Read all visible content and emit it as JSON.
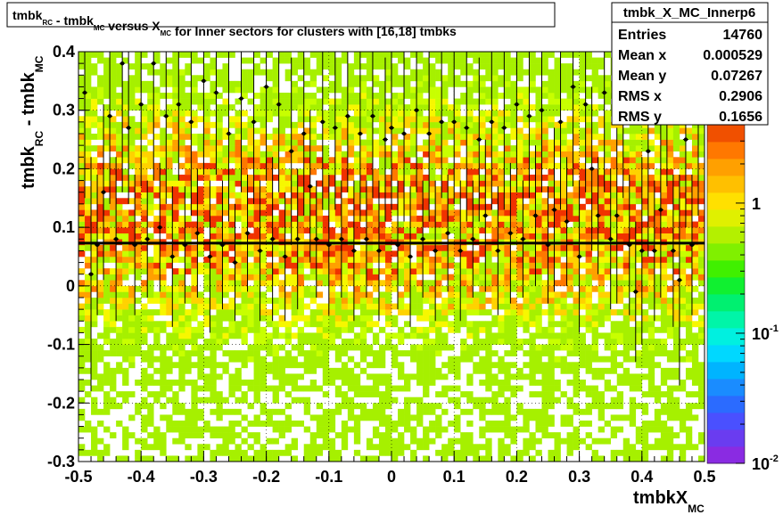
{
  "chart_data": {
    "type": "heatmap",
    "title": {
      "parts": [
        {
          "text": "tmbk",
          "sub": false
        },
        {
          "text": "RC",
          "sub": true
        },
        {
          "text": " - tmbk",
          "sub": false
        },
        {
          "text": "MC",
          "sub": true
        },
        {
          "text": " versus X",
          "sub": false
        },
        {
          "text": "MC",
          "sub": true
        },
        {
          "text": " for Inner sectors for clusters with [16,18] tmbks",
          "sub": false
        }
      ]
    },
    "xlabel": {
      "main": "tmbkX",
      "sub": "MC"
    },
    "ylabel": {
      "main1": "tmbk",
      "sub1": "RC",
      "main2": " - tmbk",
      "sub2": "MC"
    },
    "xlim": [
      -0.5,
      0.5
    ],
    "ylim": [
      -0.3,
      0.4
    ],
    "x_ticks": [
      {
        "v": -0.5,
        "label": "-0.5"
      },
      {
        "v": -0.4,
        "label": "-0.4"
      },
      {
        "v": -0.3,
        "label": "-0.3"
      },
      {
        "v": -0.2,
        "label": "-0.2"
      },
      {
        "v": -0.1,
        "label": "-0.1"
      },
      {
        "v": 0,
        "label": "0"
      },
      {
        "v": 0.1,
        "label": "0.1"
      },
      {
        "v": 0.2,
        "label": "0.2"
      },
      {
        "v": 0.3,
        "label": "0.3"
      },
      {
        "v": 0.4,
        "label": "0.4"
      },
      {
        "v": 0.5,
        "label": "0.5"
      }
    ],
    "y_ticks": [
      {
        "v": -0.3,
        "label": "-0.3"
      },
      {
        "v": -0.2,
        "label": "-0.2"
      },
      {
        "v": -0.1,
        "label": "-0.1"
      },
      {
        "v": 0,
        "label": "0"
      },
      {
        "v": 0.1,
        "label": "0.1"
      },
      {
        "v": 0.2,
        "label": "0.2"
      },
      {
        "v": 0.3,
        "label": "0.3"
      },
      {
        "v": 0.4,
        "label": "0.4"
      }
    ],
    "z_scale": "log",
    "z_range": [
      0.01,
      4
    ],
    "z_ticks": [
      {
        "v": 1,
        "base": "1",
        "exp": ""
      },
      {
        "v": 0.1,
        "base": "10",
        "exp": "-1"
      },
      {
        "v": 0.01,
        "base": "10",
        "exp": "-2"
      }
    ],
    "grid": true,
    "fit_line_y": 0.073,
    "stats": {
      "name": "tmbk_X_MC_Innerp6",
      "rows": [
        {
          "label": "Entries",
          "value": "14760"
        },
        {
          "label": "Mean x",
          "value": "0.000529"
        },
        {
          "label": "Mean y",
          "value": "0.07267"
        },
        {
          "label": "RMS x",
          "value": "0.2906"
        },
        {
          "label": "RMS y",
          "value": "0.1656"
        }
      ]
    },
    "profile_points": [
      {
        "x": -0.49,
        "y": 0.33,
        "e": 0.18
      },
      {
        "x": -0.48,
        "y": 0.02,
        "e": 0.2
      },
      {
        "x": -0.47,
        "y": 0.07,
        "e": 0.12
      },
      {
        "x": -0.46,
        "y": 0.16,
        "e": 0.15
      },
      {
        "x": -0.45,
        "y": 0.29,
        "e": 0.15
      },
      {
        "x": -0.44,
        "y": 0.08,
        "e": 0.14
      },
      {
        "x": -0.43,
        "y": 0.38,
        "e": 0.22
      },
      {
        "x": -0.42,
        "y": 0.27,
        "e": 0.13
      },
      {
        "x": -0.41,
        "y": 0.07,
        "e": 0.12
      },
      {
        "x": -0.4,
        "y": 0.31,
        "e": 0.14
      },
      {
        "x": -0.39,
        "y": 0.08,
        "e": 0.1
      },
      {
        "x": -0.38,
        "y": 0.38,
        "e": 0.2
      },
      {
        "x": -0.37,
        "y": 0.1,
        "e": 0.11
      },
      {
        "x": -0.36,
        "y": 0.29,
        "e": 0.15
      },
      {
        "x": -0.35,
        "y": 0.05,
        "e": 0.12
      },
      {
        "x": -0.34,
        "y": 0.31,
        "e": 0.13
      },
      {
        "x": -0.33,
        "y": 0.07,
        "e": 0.1
      },
      {
        "x": -0.32,
        "y": 0.28,
        "e": 0.16
      },
      {
        "x": -0.31,
        "y": 0.09,
        "e": 0.11
      },
      {
        "x": -0.3,
        "y": 0.35,
        "e": 0.16
      },
      {
        "x": -0.29,
        "y": 0.05,
        "e": 0.13
      },
      {
        "x": -0.28,
        "y": 0.33,
        "e": 0.14
      },
      {
        "x": -0.27,
        "y": 0.07,
        "e": 0.11
      },
      {
        "x": -0.26,
        "y": 0.26,
        "e": 0.15
      },
      {
        "x": -0.25,
        "y": 0.04,
        "e": 0.1
      },
      {
        "x": -0.24,
        "y": 0.32,
        "e": 0.16
      },
      {
        "x": -0.23,
        "y": 0.09,
        "e": 0.1
      },
      {
        "x": -0.22,
        "y": 0.28,
        "e": 0.14
      },
      {
        "x": -0.21,
        "y": 0.06,
        "e": 0.12
      },
      {
        "x": -0.2,
        "y": 0.34,
        "e": 0.16
      },
      {
        "x": -0.19,
        "y": 0.08,
        "e": 0.14
      },
      {
        "x": -0.18,
        "y": 0.31,
        "e": 0.15
      },
      {
        "x": -0.17,
        "y": 0.05,
        "e": 0.11
      },
      {
        "x": -0.16,
        "y": 0.23,
        "e": 0.16
      },
      {
        "x": -0.15,
        "y": 0.08,
        "e": 0.12
      },
      {
        "x": -0.14,
        "y": 0.26,
        "e": 0.14
      },
      {
        "x": -0.13,
        "y": 0.17,
        "e": 0.13
      },
      {
        "x": -0.12,
        "y": 0.08,
        "e": 0.1
      },
      {
        "x": -0.11,
        "y": 0.28,
        "e": 0.15
      },
      {
        "x": -0.1,
        "y": 0.07,
        "e": 0.12
      },
      {
        "x": -0.09,
        "y": 0.27,
        "e": 0.14
      },
      {
        "x": -0.08,
        "y": 0.08,
        "e": 0.1
      },
      {
        "x": -0.07,
        "y": 0.29,
        "e": 0.13
      },
      {
        "x": -0.06,
        "y": 0.06,
        "e": 0.12
      },
      {
        "x": -0.05,
        "y": 0.26,
        "e": 0.15
      },
      {
        "x": -0.04,
        "y": 0.08,
        "e": 0.1
      },
      {
        "x": -0.03,
        "y": 0.29,
        "e": 0.14
      },
      {
        "x": -0.02,
        "y": 0.06,
        "e": 0.12
      },
      {
        "x": -0.01,
        "y": 0.25,
        "e": 0.14
      },
      {
        "x": 0,
        "y": 0.27,
        "e": 0.14
      },
      {
        "x": 0.01,
        "y": 0.07,
        "e": 0.11
      },
      {
        "x": 0.02,
        "y": 0.26,
        "e": 0.15
      },
      {
        "x": 0.03,
        "y": 0.05,
        "e": 0.12
      },
      {
        "x": 0.04,
        "y": 0.3,
        "e": 0.14
      },
      {
        "x": 0.05,
        "y": 0.08,
        "e": 0.1
      },
      {
        "x": 0.06,
        "y": 0.26,
        "e": 0.15
      },
      {
        "x": 0.07,
        "y": 0.06,
        "e": 0.12
      },
      {
        "x": 0.08,
        "y": 0.28,
        "e": 0.13
      },
      {
        "x": 0.09,
        "y": 0.09,
        "e": 0.1
      },
      {
        "x": 0.1,
        "y": 0.28,
        "e": 0.14
      },
      {
        "x": 0.11,
        "y": 0.06,
        "e": 0.12
      },
      {
        "x": 0.12,
        "y": 0.27,
        "e": 0.16
      },
      {
        "x": 0.13,
        "y": 0.08,
        "e": 0.1
      },
      {
        "x": 0.14,
        "y": 0.25,
        "e": 0.14
      },
      {
        "x": 0.15,
        "y": 0.12,
        "e": 0.13
      },
      {
        "x": 0.16,
        "y": 0.28,
        "e": 0.15
      },
      {
        "x": 0.17,
        "y": 0.06,
        "e": 0.11
      },
      {
        "x": 0.18,
        "y": 0.27,
        "e": 0.14
      },
      {
        "x": 0.19,
        "y": 0.09,
        "e": 0.12
      },
      {
        "x": 0.2,
        "y": 0.31,
        "e": 0.15
      },
      {
        "x": 0.21,
        "y": 0.08,
        "e": 0.1
      },
      {
        "x": 0.22,
        "y": 0.29,
        "e": 0.14
      },
      {
        "x": 0.23,
        "y": 0.12,
        "e": 0.12
      },
      {
        "x": 0.24,
        "y": 0.3,
        "e": 0.14
      },
      {
        "x": 0.25,
        "y": 0.07,
        "e": 0.1
      },
      {
        "x": 0.26,
        "y": 0.13,
        "e": 0.14
      },
      {
        "x": 0.27,
        "y": 0.28,
        "e": 0.15
      },
      {
        "x": 0.28,
        "y": 0.11,
        "e": 0.11
      },
      {
        "x": 0.29,
        "y": 0.34,
        "e": 0.17
      },
      {
        "x": 0.3,
        "y": 0.05,
        "e": 0.13
      },
      {
        "x": 0.31,
        "y": 0.31,
        "e": 0.15
      },
      {
        "x": 0.32,
        "y": 0.2,
        "e": 0.14
      },
      {
        "x": 0.33,
        "y": 0.12,
        "e": 0.1
      },
      {
        "x": 0.34,
        "y": 0.33,
        "e": 0.17
      },
      {
        "x": 0.35,
        "y": 0.08,
        "e": 0.12
      },
      {
        "x": 0.36,
        "y": 0.12,
        "e": 0.15
      },
      {
        "x": 0.37,
        "y": 0.31,
        "e": 0.16
      },
      {
        "x": 0.38,
        "y": 0.07,
        "e": 0.12
      },
      {
        "x": 0.39,
        "y": -0.01,
        "e": 0.12
      },
      {
        "x": 0.4,
        "y": 0.06,
        "e": 0.16
      },
      {
        "x": 0.41,
        "y": 0.23,
        "e": 0.18
      },
      {
        "x": 0.42,
        "y": 0.06,
        "e": 0.12
      },
      {
        "x": 0.43,
        "y": 0.13,
        "e": 0.15
      },
      {
        "x": 0.44,
        "y": 0.33,
        "e": 0.16
      },
      {
        "x": 0.45,
        "y": 0.06,
        "e": 0.13
      },
      {
        "x": 0.46,
        "y": 0.01,
        "e": 0.18
      },
      {
        "x": 0.47,
        "y": 0.25,
        "e": 0.15
      },
      {
        "x": 0.48,
        "y": 0.07,
        "e": 0.12
      },
      {
        "x": 0.49,
        "y": 0.28,
        "e": 0.16
      }
    ]
  }
}
